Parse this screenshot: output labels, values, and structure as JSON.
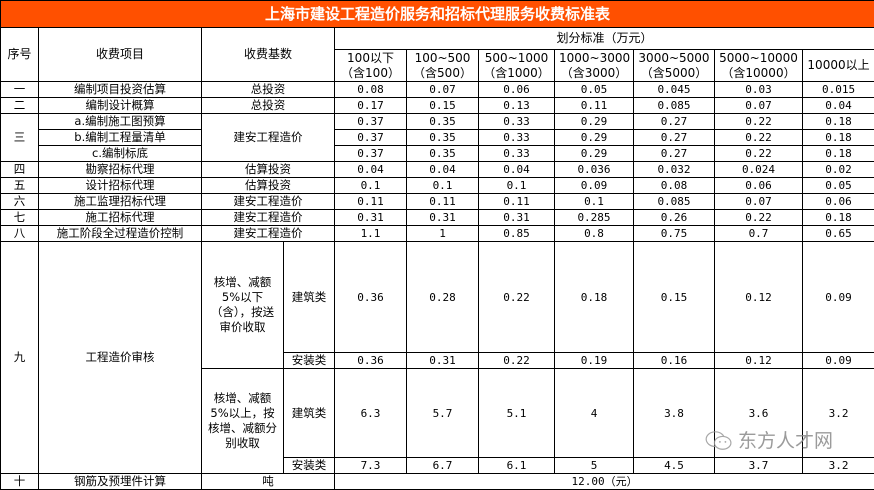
{
  "title": "上海市建设工程造价服务和招标代理服务收费标准表",
  "colors": {
    "title_bg": "#ff5000",
    "title_text": "#ffffff",
    "border": "#000000"
  },
  "header": {
    "seq": "序号",
    "item": "收费项目",
    "base": "收费基数",
    "standard": "划分标准（万元）",
    "ranges": [
      "100以下（含100）",
      "100~500（含500）",
      "500~1000（含1000）",
      "1000~3000（含3000）",
      "3000~5000（含5000）",
      "5000~10000（含10000）",
      "10000以上"
    ]
  },
  "rows": [
    {
      "seq": "一",
      "item": "编制项目投资估算",
      "base": "总投资",
      "values": [
        "0.08",
        "0.07",
        "0.06",
        "0.05",
        "0.045",
        "0.03",
        "0.015"
      ]
    },
    {
      "seq": "二",
      "item": "编制设计概算",
      "base": "总投资",
      "values": [
        "0.17",
        "0.15",
        "0.13",
        "0.11",
        "0.085",
        "0.07",
        "0.04"
      ]
    },
    {
      "seq": "三",
      "item": "a.编制施工图预算",
      "base": "建安工程造价",
      "values": [
        "0.37",
        "0.35",
        "0.33",
        "0.29",
        "0.27",
        "0.22",
        "0.18"
      ]
    },
    {
      "item": "b.编制工程量清单",
      "values": [
        "0.37",
        "0.35",
        "0.33",
        "0.29",
        "0.27",
        "0.22",
        "0.18"
      ]
    },
    {
      "item": "c.编制标底",
      "values": [
        "0.37",
        "0.35",
        "0.33",
        "0.29",
        "0.27",
        "0.22",
        "0.18"
      ]
    },
    {
      "seq": "四",
      "item": "勘察招标代理",
      "base": "估算投资",
      "values": [
        "0.04",
        "0.04",
        "0.04",
        "0.036",
        "0.032",
        "0.024",
        "0.02"
      ]
    },
    {
      "seq": "五",
      "item": "设计招标代理",
      "base": "估算投资",
      "values": [
        "0.1",
        "0.1",
        "0.1",
        "0.09",
        "0.08",
        "0.06",
        "0.05"
      ]
    },
    {
      "seq": "六",
      "item": "施工监理招标代理",
      "base": "建安工程造价",
      "values": [
        "0.11",
        "0.11",
        "0.11",
        "0.1",
        "0.085",
        "0.07",
        "0.06"
      ]
    },
    {
      "seq": "七",
      "item": "施工招标代理",
      "base": "建安工程造价",
      "values": [
        "0.31",
        "0.31",
        "0.31",
        "0.285",
        "0.26",
        "0.22",
        "0.18"
      ]
    },
    {
      "seq": "八",
      "item": "施工阶段全过程造价控制",
      "base": "建安工程造价",
      "values": [
        "1.1",
        "1",
        "0.85",
        "0.8",
        "0.75",
        "0.7",
        "0.65"
      ]
    }
  ],
  "audit": {
    "seq": "九",
    "item": "工程造价审核",
    "groups": [
      {
        "condition": "核增、减额5%以下（含），按送审价收取",
        "building_label": "建筑类",
        "building": [
          "0.36",
          "0.28",
          "0.22",
          "0.18",
          "0.15",
          "0.12",
          "0.09"
        ],
        "install_label": "安装类",
        "install": [
          "0.36",
          "0.31",
          "0.22",
          "0.19",
          "0.16",
          "0.12",
          "0.09"
        ]
      },
      {
        "condition": "核增、减额5%以上，按核增、减额分别收取",
        "building_label": "建筑类",
        "building": [
          "6.3",
          "5.7",
          "5.1",
          "4",
          "3.8",
          "3.6",
          "3.2"
        ],
        "install_label": "安装类",
        "install": [
          "7.3",
          "6.7",
          "6.1",
          "5",
          "4.5",
          "3.7",
          "3.2"
        ]
      }
    ]
  },
  "rebar": {
    "seq": "十",
    "item": "钢筋及预埋件计算",
    "base": "吨",
    "value": "12.00（元）"
  },
  "watermark": {
    "icon": "wechat-icon",
    "text": "东方人才网"
  }
}
